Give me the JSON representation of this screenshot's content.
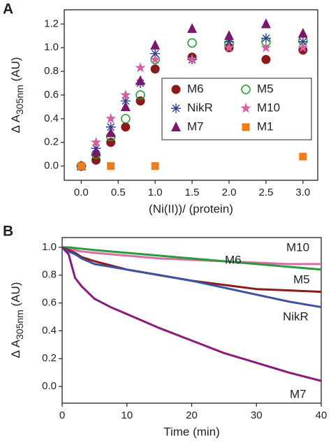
{
  "chart_data": [
    {
      "type": "scatter",
      "panel": "A",
      "xlabel": "(Ni(II))/ (protein)",
      "ylabel": [
        "Δ A",
        "305nm",
        " (AU)"
      ],
      "xlim": [
        -0.23,
        3.2
      ],
      "ylim": [
        -0.12,
        1.32
      ],
      "xticks": [
        {
          "value": 0,
          "label": "0.0"
        },
        0.5,
        {
          "value": 1,
          "label": "1.0"
        },
        1.5,
        {
          "value": 2,
          "label": "2.0"
        },
        2.5,
        {
          "value": 3,
          "label": "3.0"
        }
      ],
      "yticks": [
        {
          "value": 0,
          "label": "0.0"
        },
        0.2,
        0.4,
        0.6,
        0.8,
        {
          "value": 1,
          "label": "1.0"
        },
        1.2
      ],
      "legend": "right",
      "series": [
        {
          "name": "M6",
          "color": "#8b1a1a",
          "marker": "circle",
          "x": [
            0,
            0.2,
            0.4,
            0.6,
            0.8,
            1.0,
            1.5,
            2.0,
            2.5,
            3.0
          ],
          "values": [
            0,
            0.05,
            0.2,
            0.33,
            0.55,
            0.82,
            0.92,
            1.0,
            0.9,
            0.98
          ]
        },
        {
          "name": "M5",
          "color": "#1a9e2a",
          "marker": "open-circle",
          "x": [
            0,
            0.2,
            0.4,
            0.6,
            0.8,
            1.0,
            1.5,
            2.0,
            2.5,
            3.0
          ],
          "values": [
            0,
            0.1,
            0.25,
            0.4,
            0.6,
            0.9,
            1.04,
            1.03,
            1.05,
            1.06
          ]
        },
        {
          "name": "NikR",
          "color": "#2c3e8c",
          "marker": "asterisk",
          "x": [
            0,
            0.2,
            0.4,
            0.6,
            0.8,
            1.0,
            1.5,
            2.0,
            2.5,
            3.0
          ],
          "values": [
            0,
            0.15,
            0.33,
            0.55,
            0.7,
            0.95,
            0.9,
            1.05,
            1.08,
            1.05
          ]
        },
        {
          "name": "M10",
          "color": "#d65fa3",
          "marker": "star",
          "x": [
            0,
            0.2,
            0.4,
            0.6,
            0.8,
            1.0,
            1.5,
            2.0,
            2.5,
            3.0
          ],
          "values": [
            0,
            0.2,
            0.4,
            0.6,
            0.83,
            0.9,
            0.9,
            1.0,
            1.0,
            1.0
          ]
        },
        {
          "name": "M7",
          "color": "#7b1670",
          "marker": "triangle",
          "x": [
            0,
            0.2,
            0.4,
            0.6,
            0.8,
            1.0,
            1.5,
            2.0,
            2.5,
            3.0
          ],
          "values": [
            0,
            0.12,
            0.28,
            0.5,
            0.72,
            1.02,
            1.16,
            1.1,
            1.2,
            1.12
          ]
        },
        {
          "name": "M1",
          "color": "#ef7b1a",
          "marker": "square",
          "x": [
            0,
            0.4,
            1.0,
            3.0
          ],
          "values": [
            0,
            0,
            0,
            0.08
          ]
        }
      ]
    },
    {
      "type": "line",
      "panel": "B",
      "xlabel": "Time (min)",
      "ylabel": [
        "Δ A",
        "305nm",
        " (AU)"
      ],
      "xlim": [
        0,
        40
      ],
      "ylim": [
        -0.12,
        1.07
      ],
      "xticks": [
        0,
        10,
        20,
        30,
        40
      ],
      "yticks": [
        {
          "value": 0,
          "label": "0.0"
        },
        0.2,
        0.4,
        0.6,
        0.8,
        {
          "value": 1,
          "label": "1.0"
        }
      ],
      "x": [
        0,
        1,
        2,
        3,
        5,
        7.5,
        10,
        15,
        20,
        25,
        30,
        35,
        40
      ],
      "series": [
        {
          "name": "M10",
          "color": "#d66fa8",
          "values": [
            1.0,
            0.99,
            0.98,
            0.97,
            0.96,
            0.95,
            0.94,
            0.92,
            0.91,
            0.9,
            0.89,
            0.88,
            0.88
          ]
        },
        {
          "name": "M5",
          "color": "#2a9a3a",
          "values": [
            1.0,
            1.0,
            0.995,
            0.99,
            0.98,
            0.97,
            0.96,
            0.94,
            0.92,
            0.9,
            0.88,
            0.86,
            0.84
          ]
        },
        {
          "name": "M6",
          "color": "#8b1a1a",
          "values": [
            1.0,
            0.98,
            0.96,
            0.93,
            0.9,
            0.87,
            0.84,
            0.8,
            0.76,
            0.73,
            0.7,
            0.69,
            0.68
          ]
        },
        {
          "name": "NikR",
          "color": "#3a52a0",
          "values": [
            1.0,
            0.97,
            0.95,
            0.92,
            0.88,
            0.86,
            0.84,
            0.8,
            0.76,
            0.71,
            0.66,
            0.61,
            0.57
          ]
        },
        {
          "name": "M7",
          "color": "#8b1a7e",
          "values": [
            1.0,
            0.95,
            0.78,
            0.72,
            0.63,
            0.57,
            0.52,
            0.42,
            0.33,
            0.24,
            0.17,
            0.1,
            0.04
          ]
        }
      ]
    }
  ]
}
